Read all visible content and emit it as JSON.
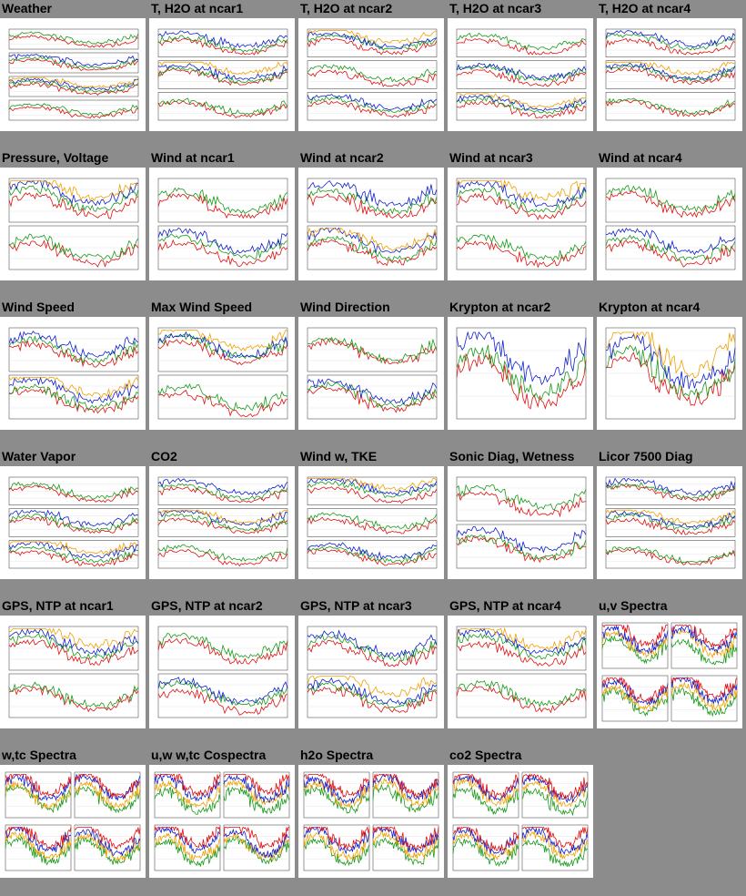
{
  "colors": {
    "page_background": "#8c8c8c",
    "plot_background": "#ffffff",
    "trace_red": "#e01010",
    "trace_green": "#1a9a1a",
    "trace_blue": "#1020d0",
    "trace_orange": "#f0a000",
    "trace_dark": "#333333"
  },
  "gallery": {
    "items": [
      {
        "title": "Weather",
        "kind": "multi4"
      },
      {
        "title": "T, H2O at ncar1",
        "kind": "multi3"
      },
      {
        "title": "T, H2O at ncar2",
        "kind": "multi3"
      },
      {
        "title": "T, H2O at ncar3",
        "kind": "multi3"
      },
      {
        "title": "T, H2O at ncar4",
        "kind": "multi3"
      },
      {
        "title": "Pressure, Voltage",
        "kind": "multi2"
      },
      {
        "title": "Wind at ncar1",
        "kind": "multi2"
      },
      {
        "title": "Wind at ncar2",
        "kind": "multi2"
      },
      {
        "title": "Wind at ncar3",
        "kind": "multi2"
      },
      {
        "title": "Wind at ncar4",
        "kind": "multi2"
      },
      {
        "title": "Wind Speed",
        "kind": "multi2"
      },
      {
        "title": "Max Wind Speed",
        "kind": "multi2"
      },
      {
        "title": "Wind Direction",
        "kind": "multi2"
      },
      {
        "title": "Krypton at ncar2",
        "kind": "multi1"
      },
      {
        "title": "Krypton at ncar4",
        "kind": "multi1"
      },
      {
        "title": "Water Vapor",
        "kind": "multi3"
      },
      {
        "title": "CO2",
        "kind": "multi3"
      },
      {
        "title": "Wind w, TKE",
        "kind": "multi3"
      },
      {
        "title": "Sonic Diag, Wetness",
        "kind": "multi2"
      },
      {
        "title": "Licor 7500 Diag",
        "kind": "multi3"
      },
      {
        "title": "GPS, NTP at ncar1",
        "kind": "multi2"
      },
      {
        "title": "GPS, NTP at ncar2",
        "kind": "multi2"
      },
      {
        "title": "GPS, NTP at ncar3",
        "kind": "multi2"
      },
      {
        "title": "GPS, NTP at ncar4",
        "kind": "multi2"
      },
      {
        "title": "u,v Spectra",
        "kind": "spectra"
      },
      {
        "title": "w,tc Spectra",
        "kind": "spectra"
      },
      {
        "title": "u,w w,tc Cospectra",
        "kind": "spectra"
      },
      {
        "title": "h2o Spectra",
        "kind": "spectra"
      },
      {
        "title": "co2 Spectra",
        "kind": "spectra"
      }
    ]
  }
}
